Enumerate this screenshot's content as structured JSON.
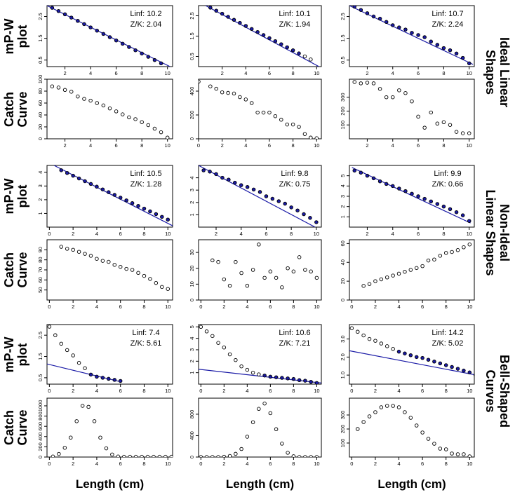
{
  "figure": {
    "row_labels": [
      "mP-W\nplot",
      "Catch\nCurve",
      "mP-W\nplot",
      "Catch\nCurve",
      "mP-W\nplot",
      "Catch\nCurve"
    ],
    "group_labels": [
      "Ideal Linear\nShapes",
      "Non-Ideal\nLinear Shapes",
      "Bell-Shaped\nCurves"
    ],
    "x_label": "Length (cm)",
    "colors": {
      "points": "#000000",
      "mpw_fill": "#1a1aa6",
      "fit_line": "#1a1aa6",
      "frame": "#000000"
    }
  },
  "chart_data": [
    {
      "id": "r1c1",
      "type": "scatter",
      "kind": "mpw",
      "linf": "Linf: 10.2",
      "zk": "Z/K: 2.04",
      "xlim": [
        0.6,
        10.4
      ],
      "ylim": [
        0.2,
        3.0
      ],
      "xticks": [
        2,
        4,
        6,
        8,
        10
      ],
      "yticks": [
        0.5,
        1.5,
        2.5
      ],
      "ytick_labels": [
        "0.5",
        "1.5",
        "2.5"
      ],
      "x": [
        1,
        1.5,
        2,
        2.5,
        3,
        3.5,
        4,
        4.5,
        5,
        5.5,
        6,
        6.5,
        7,
        7.5,
        8,
        8.5,
        9,
        9.5
      ],
      "y": [
        2.9,
        2.75,
        2.6,
        2.45,
        2.3,
        2.15,
        2.0,
        1.85,
        1.7,
        1.55,
        1.4,
        1.25,
        1.1,
        0.95,
        0.8,
        0.65,
        0.5,
        0.35
      ],
      "line": [
        [
          0.6,
          3.0
        ],
        [
          10.2,
          0.2
        ]
      ]
    },
    {
      "id": "r1c2",
      "type": "scatter",
      "kind": "mpw",
      "linf": "Linf: 10.1",
      "zk": "Z/K: 1.94",
      "xlim": [
        0,
        10.4
      ],
      "ylim": [
        0,
        3.0
      ],
      "xticks": [
        2,
        4,
        6,
        8,
        10
      ],
      "yticks": [
        0.5,
        1.5,
        2.5
      ],
      "ytick_labels": [
        "0.5",
        "1.5",
        "2.5"
      ],
      "x": [
        1,
        1.5,
        2,
        2.5,
        3,
        3.5,
        4,
        4.5,
        5,
        5.5,
        6,
        6.5,
        7,
        7.5,
        8,
        8.5,
        9,
        9.5
      ],
      "y": [
        2.9,
        2.75,
        2.6,
        2.45,
        2.3,
        2.15,
        2.0,
        1.85,
        1.7,
        1.55,
        1.4,
        1.25,
        1.1,
        0.95,
        0.8,
        0.65,
        0.5,
        0.35
      ],
      "hollow_from": 16,
      "line": [
        [
          0.6,
          3.0
        ],
        [
          10.2,
          0
        ]
      ]
    },
    {
      "id": "r1c3",
      "type": "scatter",
      "kind": "mpw",
      "linf": "Linf: 10.7",
      "zk": "Z/K: 2.24",
      "xlim": [
        0.6,
        10.4
      ],
      "ylim": [
        0.2,
        3.0
      ],
      "xticks": [
        2,
        4,
        6,
        8,
        10
      ],
      "yticks": [
        0.5,
        1.5,
        2.5
      ],
      "ytick_labels": [
        "0.5",
        "1.5",
        "2.5"
      ],
      "x": [
        1,
        1.5,
        2,
        2.5,
        3,
        3.5,
        4,
        4.5,
        5,
        5.5,
        6,
        6.5,
        7,
        7.5,
        8,
        8.5,
        9,
        9.5,
        10
      ],
      "y": [
        2.95,
        2.8,
        2.65,
        2.5,
        2.4,
        2.25,
        2.1,
        2.0,
        1.9,
        1.75,
        1.65,
        1.55,
        1.35,
        1.2,
        1.05,
        0.95,
        0.8,
        0.6,
        0.35
      ],
      "line": [
        [
          0.6,
          3.0
        ],
        [
          10.3,
          0.3
        ]
      ]
    },
    {
      "id": "r2c1",
      "type": "scatter",
      "kind": "catch",
      "xlim": [
        0.6,
        10.4
      ],
      "ylim": [
        0,
        100
      ],
      "xticks": [
        2,
        4,
        6,
        8,
        10
      ],
      "yticks": [
        0,
        20,
        40,
        60,
        80,
        100
      ],
      "ytick_labels": [
        "0",
        "20",
        "40",
        "60",
        "80",
        "100"
      ],
      "x": [
        1,
        1.5,
        2,
        2.5,
        3,
        3.5,
        4,
        4.5,
        5,
        5.5,
        6,
        6.5,
        7,
        7.5,
        8,
        8.5,
        9,
        9.5,
        10
      ],
      "y": [
        88,
        86,
        82,
        79,
        71,
        67,
        64,
        60,
        56,
        51,
        46,
        41,
        36,
        33,
        28,
        23,
        17,
        11,
        2
      ]
    },
    {
      "id": "r2c2",
      "type": "scatter",
      "kind": "catch",
      "xlim": [
        0,
        10.4
      ],
      "ylim": [
        0,
        500
      ],
      "xticks": [
        0,
        2,
        4,
        6,
        8,
        10
      ],
      "yticks": [
        0,
        200,
        400
      ],
      "ytick_labels": [
        "0",
        "200",
        "400"
      ],
      "x": [
        0,
        1,
        1.5,
        2,
        2.5,
        3,
        3.5,
        4,
        4.5,
        5,
        5.5,
        6,
        6.5,
        7,
        7.5,
        8,
        8.5,
        9,
        9.5,
        10
      ],
      "y": [
        480,
        440,
        420,
        390,
        385,
        380,
        350,
        330,
        300,
        220,
        220,
        220,
        190,
        160,
        120,
        120,
        100,
        40,
        10,
        5
      ]
    },
    {
      "id": "r2c3",
      "type": "scatter",
      "kind": "catch",
      "xlim": [
        0.6,
        10.4
      ],
      "ylim": [
        0,
        430
      ],
      "xticks": [
        2,
        4,
        6,
        8,
        10
      ],
      "yticks": [
        100,
        200,
        300
      ],
      "ytick_labels": [
        "100",
        "200",
        "300"
      ],
      "x": [
        1,
        1.5,
        2,
        2.5,
        3,
        3.5,
        4,
        4.5,
        5,
        5.5,
        6,
        6.5,
        7,
        7.5,
        8,
        8.5,
        9,
        9.5,
        10
      ],
      "y": [
        410,
        400,
        405,
        400,
        360,
        300,
        300,
        350,
        330,
        270,
        160,
        80,
        190,
        110,
        120,
        100,
        50,
        40,
        40
      ]
    },
    {
      "id": "r3c1",
      "type": "scatter",
      "kind": "mpw",
      "linf": "Linf: 10.5",
      "zk": "Z/K: 1.28",
      "xlim": [
        -0.2,
        10.4
      ],
      "ylim": [
        0,
        4.5
      ],
      "xticks": [
        0,
        2,
        4,
        6,
        8,
        10
      ],
      "yticks": [
        1,
        2,
        3,
        4
      ],
      "ytick_labels": [
        "1",
        "2",
        "3",
        "4"
      ],
      "x": [
        1,
        1.5,
        2,
        2.5,
        3,
        3.5,
        4,
        4.5,
        5,
        5.5,
        6,
        6.5,
        7,
        7.5,
        8,
        8.5,
        9,
        9.5,
        10
      ],
      "y": [
        4.15,
        3.95,
        3.75,
        3.55,
        3.35,
        3.15,
        2.95,
        2.75,
        2.55,
        2.35,
        2.15,
        1.95,
        1.75,
        1.55,
        1.35,
        1.15,
        0.95,
        0.75,
        0.55
      ],
      "line": [
        [
          0.4,
          4.5
        ],
        [
          10.4,
          0.1
        ]
      ]
    },
    {
      "id": "r3c2",
      "type": "scatter",
      "kind": "mpw",
      "linf": "Linf: 9.8",
      "zk": "Z/K: 0.75",
      "xlim": [
        0.6,
        10.4
      ],
      "ylim": [
        0,
        5.0
      ],
      "xticks": [
        2,
        4,
        6,
        8,
        10
      ],
      "yticks": [
        1,
        2,
        3,
        4
      ],
      "ytick_labels": [
        "1",
        "2",
        "3",
        "4"
      ],
      "x": [
        1,
        1.5,
        2,
        2.5,
        3,
        3.5,
        4,
        4.5,
        5,
        5.5,
        6,
        6.5,
        7,
        7.5,
        8,
        8.5,
        9,
        9.5,
        10
      ],
      "y": [
        4.6,
        4.5,
        4.3,
        4.0,
        3.85,
        3.6,
        3.4,
        3.25,
        3.05,
        2.85,
        2.5,
        2.3,
        2.1,
        1.9,
        1.6,
        1.35,
        1.05,
        0.75,
        0.4
      ],
      "hollow_to": 9,
      "line": [
        [
          0.6,
          5.0
        ],
        [
          9.9,
          0
        ]
      ]
    },
    {
      "id": "r3c3",
      "type": "scatter",
      "kind": "mpw",
      "linf": "Linf: 9.9",
      "zk": "Z/K: 0.66",
      "xlim": [
        0.6,
        10.4
      ],
      "ylim": [
        0,
        6.0
      ],
      "xticks": [
        2,
        4,
        6,
        8,
        10
      ],
      "yticks": [
        1,
        2,
        3,
        4,
        5
      ],
      "ytick_labels": [
        "1",
        "2",
        "3",
        "4",
        "5"
      ],
      "x": [
        1,
        1.5,
        2,
        2.5,
        3,
        3.5,
        4,
        4.5,
        5,
        5.5,
        6,
        6.5,
        7,
        7.5,
        8,
        8.5,
        9,
        9.5,
        10
      ],
      "y": [
        5.5,
        5.3,
        5.0,
        4.75,
        4.45,
        4.2,
        4.0,
        3.75,
        3.5,
        3.25,
        3.0,
        2.75,
        2.5,
        2.25,
        2.0,
        1.75,
        1.45,
        1.15,
        0.6
      ],
      "line": [
        [
          0.8,
          5.8
        ],
        [
          10.1,
          0.4
        ]
      ]
    },
    {
      "id": "r4c1",
      "type": "scatter",
      "kind": "catch",
      "xlim": [
        -0.2,
        10.4
      ],
      "ylim": [
        40,
        100
      ],
      "xticks": [
        0,
        2,
        4,
        6,
        8,
        10
      ],
      "yticks": [
        50,
        60,
        70,
        80,
        90
      ],
      "ytick_labels": [
        "50",
        "60",
        "70",
        "80",
        "90"
      ],
      "x": [
        1,
        1.5,
        2,
        2.5,
        3,
        3.5,
        4,
        4.5,
        5,
        5.5,
        6,
        6.5,
        7,
        7.5,
        8,
        8.5,
        9,
        9.5,
        10
      ],
      "y": [
        93,
        91,
        90,
        88,
        86,
        84,
        81,
        79,
        78,
        75,
        73,
        71,
        70,
        67,
        64,
        61,
        57,
        53,
        51
      ]
    },
    {
      "id": "r4c2",
      "type": "scatter",
      "kind": "catch",
      "xlim": [
        -0.2,
        10.4
      ],
      "ylim": [
        0,
        38
      ],
      "xticks": [
        0,
        2,
        4,
        6,
        8,
        10
      ],
      "yticks": [
        0,
        10,
        20,
        30
      ],
      "ytick_labels": [
        "0",
        "10",
        "20",
        "30"
      ],
      "x": [
        1,
        1.5,
        2,
        2.5,
        3,
        3.5,
        4,
        4.5,
        5,
        5.5,
        6,
        6.5,
        7,
        7.5,
        8,
        8.5,
        9,
        9.5,
        10
      ],
      "y": [
        25,
        24,
        13,
        9,
        24,
        17,
        9,
        19,
        35,
        14,
        18,
        14,
        8,
        20,
        18,
        27,
        19,
        18,
        14
      ]
    },
    {
      "id": "r4c3",
      "type": "scatter",
      "kind": "catch",
      "xlim": [
        -0.2,
        10.4
      ],
      "ylim": [
        0,
        64
      ],
      "xticks": [
        0,
        2,
        4,
        6,
        8,
        10
      ],
      "yticks": [
        0,
        20,
        40,
        60
      ],
      "ytick_labels": [
        "0",
        "20",
        "40",
        "60"
      ],
      "x": [
        1,
        1.5,
        2,
        2.5,
        3,
        3.5,
        4,
        4.5,
        5,
        5.5,
        6,
        6.5,
        7,
        7.5,
        8,
        8.5,
        9,
        9.5,
        10
      ],
      "y": [
        15,
        17,
        20,
        22,
        24,
        26,
        28,
        30,
        32,
        34,
        36,
        42,
        43,
        47,
        50,
        51,
        53,
        56,
        59
      ]
    },
    {
      "id": "r5c1",
      "type": "scatter",
      "kind": "mpw",
      "linf": "Linf: 7.4",
      "zk": "Z/K: 5.61",
      "xlim": [
        -0.2,
        10.4
      ],
      "ylim": [
        0.2,
        3.0
      ],
      "xticks": [
        0,
        2,
        4,
        6,
        8,
        10
      ],
      "yticks": [
        0.5,
        1.5,
        2.5
      ],
      "ytick_labels": [
        "0.5",
        "1.5",
        "2.5"
      ],
      "x": [
        0,
        0.5,
        1,
        1.5,
        2,
        2.5,
        3,
        3.5,
        4,
        4.5,
        5,
        5.5,
        6
      ],
      "y": [
        2.9,
        2.5,
        2.1,
        1.8,
        1.55,
        1.2,
        0.95,
        0.65,
        0.55,
        0.5,
        0.45,
        0.4,
        0.35
      ],
      "filled_from": 7,
      "line": [
        [
          -0.2,
          1.15
        ],
        [
          6.1,
          0.3
        ]
      ]
    },
    {
      "id": "r5c2",
      "type": "scatter",
      "kind": "mpw",
      "linf": "Linf: 10.6",
      "zk": "Z/K: 7.21",
      "xlim": [
        -0.2,
        10.4
      ],
      "ylim": [
        0,
        5.2
      ],
      "xticks": [
        0,
        2,
        4,
        6,
        8,
        10
      ],
      "yticks": [
        1,
        2,
        3,
        4,
        5
      ],
      "ytick_labels": [
        "1",
        "2",
        "3",
        "4",
        "5"
      ],
      "x": [
        0,
        0.5,
        1,
        1.5,
        2,
        2.5,
        3,
        3.5,
        4,
        4.5,
        5,
        5.5,
        6,
        6.5,
        7,
        7.5,
        8,
        8.5,
        9,
        9.5,
        10
      ],
      "y": [
        5.0,
        4.6,
        4.2,
        3.6,
        3.2,
        2.6,
        2.1,
        1.55,
        1.25,
        1.0,
        0.85,
        0.75,
        0.65,
        0.6,
        0.55,
        0.5,
        0.45,
        0.35,
        0.3,
        0.2,
        0.1
      ],
      "filled_from": 11,
      "line": [
        [
          -0.2,
          1.3
        ],
        [
          10.4,
          0.1
        ]
      ]
    },
    {
      "id": "r5c3",
      "type": "scatter",
      "kind": "mpw",
      "linf": "Linf: 14.2",
      "zk": "Z/K: 5.02",
      "xlim": [
        -0.2,
        10.4
      ],
      "ylim": [
        0.5,
        3.8
      ],
      "xticks": [
        0,
        2,
        4,
        6,
        8,
        10
      ],
      "yticks": [
        1.0,
        2.0,
        3.0
      ],
      "ytick_labels": [
        "1.0",
        "2.0",
        "3.0"
      ],
      "x": [
        0,
        0.5,
        1,
        1.5,
        2,
        2.5,
        3,
        3.5,
        4,
        4.5,
        5,
        5.5,
        6,
        6.5,
        7,
        7.5,
        8,
        8.5,
        9,
        9.5,
        10,
        10.5
      ],
      "y": [
        3.6,
        3.4,
        3.2,
        3.0,
        2.9,
        2.75,
        2.6,
        2.45,
        2.3,
        2.2,
        2.1,
        2.0,
        1.95,
        1.85,
        1.75,
        1.65,
        1.55,
        1.45,
        1.35,
        1.25,
        1.15,
        1.0
      ],
      "filled_from": 8,
      "line": [
        [
          -0.2,
          2.35
        ],
        [
          10.6,
          1.0
        ]
      ]
    },
    {
      "id": "r6c1",
      "type": "scatter",
      "kind": "catch",
      "xlim": [
        -0.2,
        10.4
      ],
      "ylim": [
        0,
        1150
      ],
      "xticks": [
        0,
        2,
        4,
        6,
        8,
        10
      ],
      "yticks": [
        0,
        200,
        400,
        600,
        800,
        1000
      ],
      "ytick_labels": [
        "0",
        "200",
        "400",
        "600",
        "800",
        "1000"
      ],
      "x": [
        0.3,
        0.8,
        1.3,
        1.8,
        2.3,
        2.8,
        3.3,
        3.8,
        4.3,
        4.8,
        5.3,
        5.8,
        6.3,
        6.8,
        7.3,
        7.8,
        8.3,
        8.8,
        9.3,
        9.8,
        10.3
      ],
      "y": [
        10,
        60,
        180,
        380,
        700,
        1000,
        980,
        700,
        380,
        170,
        50,
        10,
        5,
        5,
        5,
        5,
        5,
        5,
        5,
        5,
        5
      ]
    },
    {
      "id": "r6c2",
      "type": "scatter",
      "kind": "catch",
      "xlim": [
        -0.2,
        10.4
      ],
      "ylim": [
        0,
        1100
      ],
      "xticks": [
        0,
        2,
        4,
        6,
        8,
        10
      ],
      "yticks": [
        0,
        400,
        800
      ],
      "ytick_labels": [
        "0",
        "400",
        "800"
      ],
      "x": [
        0,
        0.5,
        1,
        1.5,
        2,
        2.5,
        3,
        3.5,
        4,
        4.5,
        5,
        5.5,
        6,
        6.5,
        7,
        7.5,
        8,
        8.5,
        9,
        9.5,
        10
      ],
      "y": [
        0,
        0,
        0,
        0,
        5,
        20,
        60,
        150,
        380,
        650,
        900,
        1000,
        820,
        520,
        250,
        80,
        15,
        0,
        0,
        0,
        0
      ]
    },
    {
      "id": "r6c3",
      "type": "scatter",
      "kind": "catch",
      "xlim": [
        -0.2,
        10.4
      ],
      "ylim": [
        0,
        420
      ],
      "xticks": [
        0,
        2,
        4,
        6,
        8,
        10
      ],
      "yticks": [
        100,
        200,
        300
      ],
      "ytick_labels": [
        "100",
        "200",
        "300"
      ],
      "x": [
        0.5,
        1,
        1.5,
        2,
        2.5,
        3,
        3.5,
        4,
        4.5,
        5,
        5.5,
        6,
        6.5,
        7,
        7.5,
        8,
        8.5,
        9,
        9.5,
        10
      ],
      "y": [
        200,
        250,
        290,
        320,
        355,
        365,
        365,
        355,
        320,
        280,
        225,
        175,
        130,
        95,
        60,
        55,
        25,
        20,
        20,
        5
      ]
    }
  ]
}
